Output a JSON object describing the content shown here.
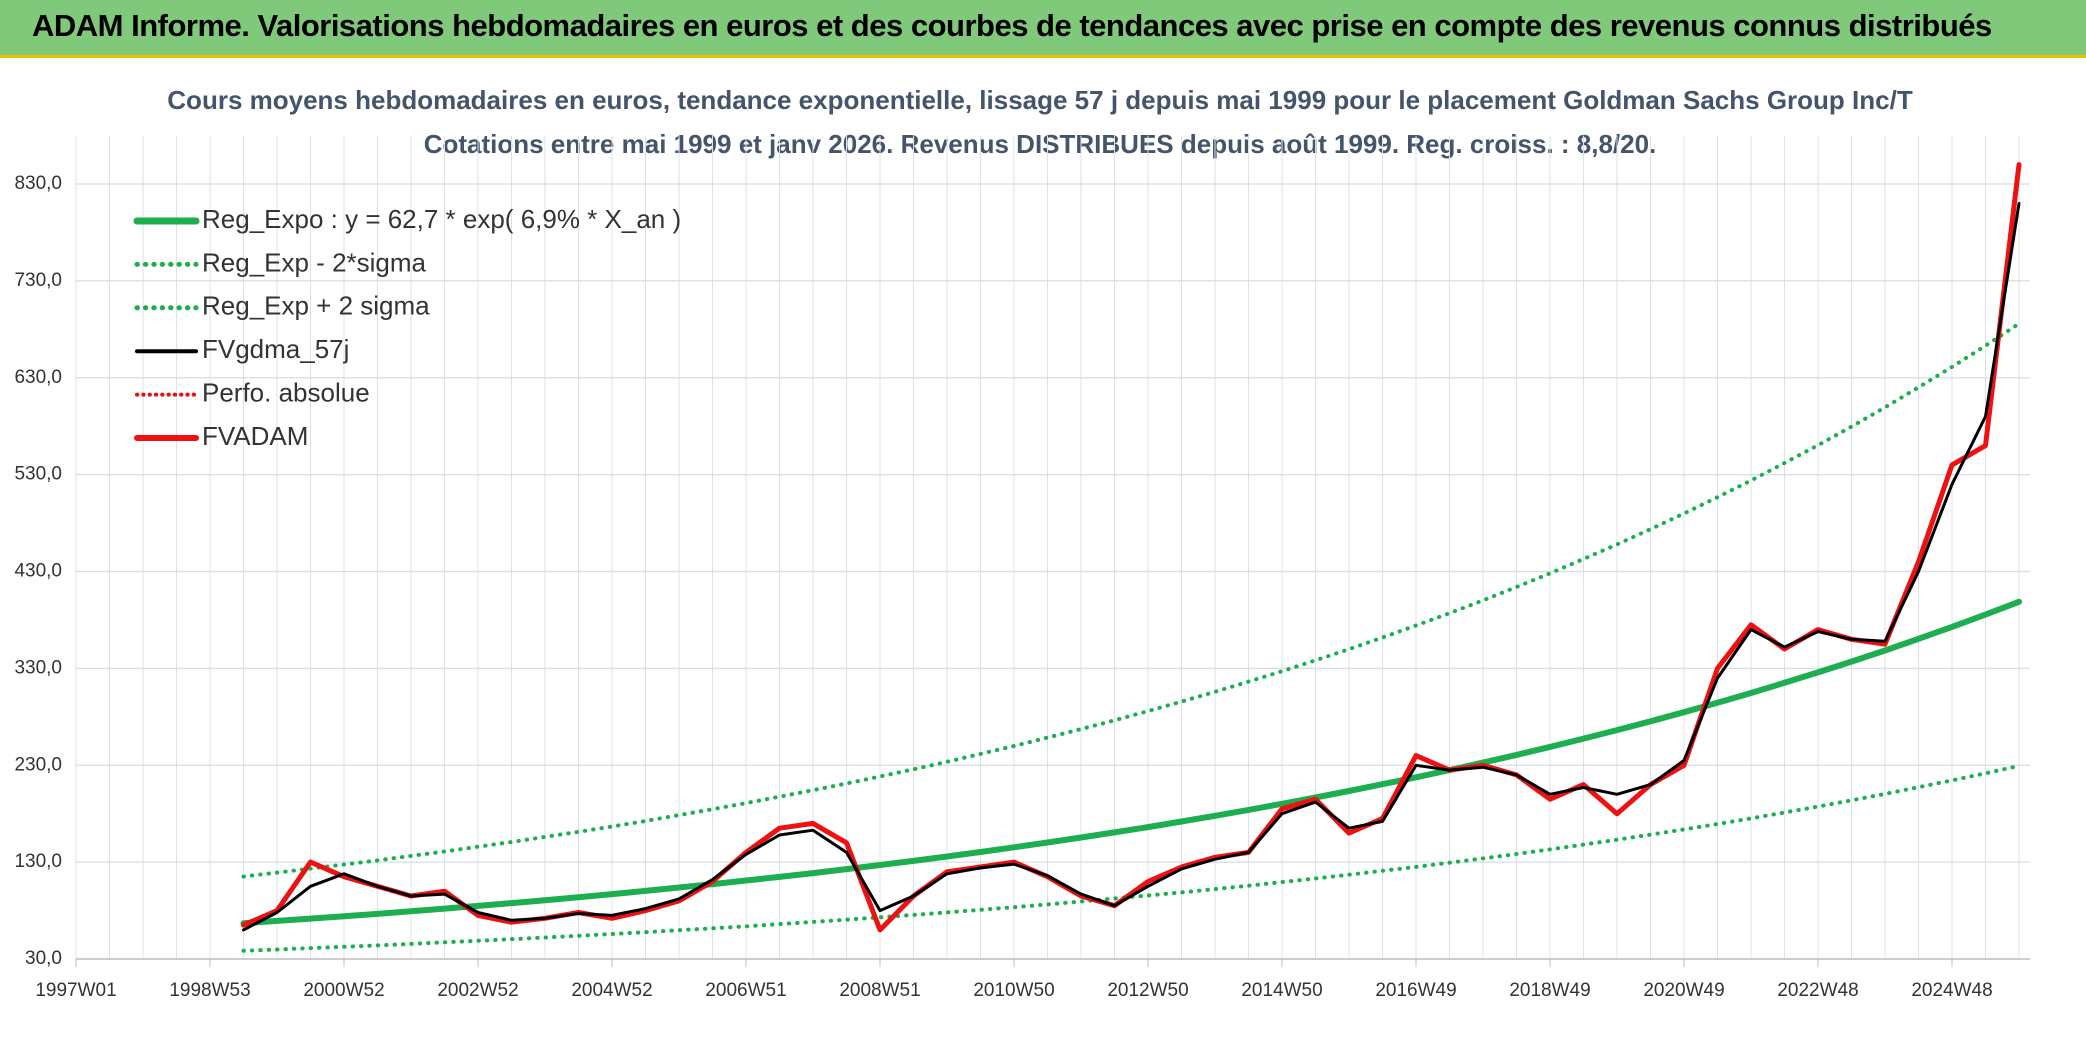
{
  "header": {
    "title": "ADAM Informe. Valorisations hebdomadaires en euros et des courbes de tendances avec prise en compte des revenus connus distribués"
  },
  "chart_data": {
    "type": "line",
    "title": "Cours moyens hebdomadaires en euros, tendance exponentielle, lissage 57 j depuis mai 1999 pour le placement Goldman Sachs Group Inc/T",
    "subtitle": "Cotations entre mai 1999 et janv 2026. Revenus DISTRIBUES depuis août 1999. Reg. croiss. : 8,8/20.",
    "categories": [
      "1997W01",
      null,
      null,
      null,
      "1998W53",
      null,
      null,
      null,
      "2000W52",
      null,
      null,
      null,
      "2002W52",
      null,
      null,
      null,
      "2004W52",
      null,
      null,
      null,
      "2006W51",
      null,
      null,
      null,
      "2008W51",
      null,
      null,
      null,
      "2010W50",
      null,
      null,
      null,
      "2012W50",
      null,
      null,
      null,
      "2014W50",
      null,
      null,
      null,
      "2016W49",
      null,
      null,
      null,
      "2018W49",
      null,
      null,
      null,
      "2020W49",
      null,
      null,
      null,
      "2022W48",
      null,
      null,
      null,
      "2024W48",
      null,
      null
    ],
    "ylim": [
      30,
      880
    ],
    "yticks": [
      {
        "value": 30,
        "label": "30,0"
      },
      {
        "value": 130,
        "label": "130,0"
      },
      {
        "value": 230,
        "label": "230,0"
      },
      {
        "value": 330,
        "label": "330,0"
      },
      {
        "value": 430,
        "label": "430,0"
      },
      {
        "value": 530,
        "label": "530,0"
      },
      {
        "value": 630,
        "label": "630,0"
      },
      {
        "value": 730,
        "label": "730,0"
      },
      {
        "value": 830,
        "label": "830,0"
      }
    ],
    "grid": true,
    "legend": "upper left",
    "series": [
      {
        "name": "Reg_Expo : y = 62,7 * exp( 6,9% *  X_an )",
        "color": "#1daf4f",
        "style": "solid",
        "width": 6,
        "values": [
          null,
          null,
          null,
          null,
          null,
          67.0,
          69.3,
          71.7,
          74.1,
          76.6,
          79.3,
          82.0,
          84.8,
          87.7,
          90.7,
          93.8,
          97.0,
          100.3,
          103.8,
          107.3,
          111.0,
          114.8,
          118.7,
          122.8,
          127.0,
          131.3,
          135.8,
          140.5,
          145.3,
          150.3,
          155.4,
          160.7,
          166.2,
          171.9,
          177.8,
          183.9,
          190.2,
          196.7,
          203.4,
          210.4,
          217.6,
          225.0,
          232.7,
          240.7,
          248.9,
          257.5,
          266.3,
          275.4,
          284.8,
          294.6,
          304.6,
          315.1,
          325.8,
          337.0,
          348.5,
          360.5,
          372.8,
          385.5,
          398.7
        ]
      },
      {
        "name": "Reg_Exp - 2*sigma",
        "color": "#1daf4f",
        "style": "dotted",
        "width": 4,
        "values": [
          null,
          null,
          null,
          null,
          null,
          38.5,
          39.8,
          41.2,
          42.6,
          44.0,
          45.6,
          47.2,
          48.8,
          50.4,
          52.2,
          53.9,
          55.8,
          57.7,
          59.7,
          61.7,
          63.8,
          66.0,
          68.3,
          70.6,
          73.0,
          75.5,
          78.1,
          80.8,
          83.5,
          86.4,
          89.4,
          92.4,
          95.6,
          98.8,
          102.2,
          105.7,
          109.4,
          113.1,
          117.0,
          121.0,
          125.1,
          129.4,
          133.8,
          138.4,
          143.1,
          148.1,
          153.1,
          158.4,
          163.8,
          169.4,
          175.1,
          181.2,
          187.3,
          193.8,
          200.4,
          207.3,
          214.4,
          221.7,
          229.3
        ]
      },
      {
        "name": "Reg_Exp + 2 sigma",
        "color": "#1daf4f",
        "style": "dotted",
        "width": 4,
        "values": [
          null,
          null,
          null,
          null,
          null,
          115.2,
          119.2,
          123.3,
          127.5,
          131.8,
          136.4,
          141.0,
          145.9,
          150.8,
          156.0,
          161.3,
          166.8,
          172.5,
          178.5,
          184.6,
          190.9,
          197.5,
          204.2,
          211.2,
          218.4,
          225.8,
          233.6,
          241.7,
          249.9,
          258.5,
          267.3,
          276.4,
          285.9,
          295.7,
          305.8,
          316.3,
          327.1,
          338.3,
          349.8,
          361.9,
          374.3,
          387.0,
          400.2,
          414.0,
          428.1,
          442.9,
          458.0,
          473.7,
          489.9,
          506.7,
          523.9,
          542.0,
          560.4,
          579.6,
          599.4,
          620.1,
          641.2,
          663.1,
          685.8
        ]
      },
      {
        "name": "FVgdma_57j",
        "color": "#000000",
        "style": "solid",
        "width": 3,
        "values": [
          null,
          null,
          null,
          null,
          null,
          60,
          78,
          105,
          118,
          105,
          95,
          97,
          78,
          70,
          72,
          77,
          75,
          82,
          92,
          112,
          138,
          158,
          163,
          140,
          80,
          95,
          118,
          124,
          128,
          116,
          97,
          85,
          105,
          123,
          133,
          140,
          180,
          192,
          165,
          172,
          230,
          225,
          228,
          220,
          200,
          207,
          200,
          210,
          235,
          320,
          370,
          352,
          368,
          360,
          358,
          430,
          520,
          590,
          810
        ]
      },
      {
        "name": "Perfo. absolue",
        "color": "#e81010",
        "style": "dotted",
        "width": 3,
        "values": [
          null,
          null,
          null,
          null,
          null,
          65,
          80,
          130,
          115,
          105,
          95,
          100,
          75,
          68,
          72,
          78,
          72,
          80,
          90,
          110,
          140,
          165,
          170,
          150,
          60,
          95,
          120,
          125,
          130,
          115,
          95,
          85,
          110,
          125,
          135,
          140,
          185,
          195,
          160,
          175,
          240,
          225,
          230,
          220,
          195,
          210,
          180,
          210,
          230,
          330,
          375,
          350,
          370,
          360,
          355,
          440,
          540,
          560,
          850
        ]
      },
      {
        "name": "FVADAM",
        "color": "#ee1111",
        "style": "solid",
        "width": 5,
        "values": [
          null,
          null,
          null,
          null,
          null,
          65,
          80,
          130,
          115,
          105,
          95,
          100,
          75,
          68,
          72,
          78,
          72,
          80,
          90,
          110,
          140,
          165,
          170,
          150,
          60,
          95,
          120,
          125,
          130,
          115,
          95,
          85,
          110,
          125,
          135,
          140,
          185,
          195,
          160,
          175,
          240,
          225,
          230,
          220,
          195,
          210,
          180,
          210,
          230,
          330,
          375,
          350,
          370,
          360,
          355,
          440,
          540,
          560,
          850
        ]
      }
    ]
  }
}
